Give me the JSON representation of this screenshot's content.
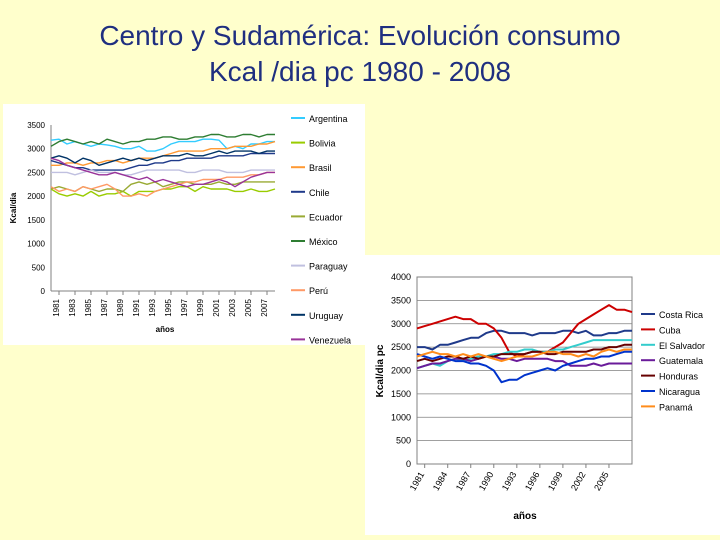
{
  "slide": {
    "title_line1": "Centro y Sudamérica: Evolución consumo",
    "title_line2": "Kcal /dia pc 1980 - 2008"
  },
  "chart_data": [
    {
      "type": "line",
      "title": "",
      "xlabel": "años",
      "ylabel": "Kcal/dia",
      "ylim": [
        0,
        3500
      ],
      "yticks": [
        0,
        500,
        1000,
        1500,
        2000,
        2500,
        3000,
        3500
      ],
      "x": [
        1980,
        1981,
        1982,
        1983,
        1984,
        1985,
        1986,
        1987,
        1988,
        1989,
        1990,
        1991,
        1992,
        1993,
        1994,
        1995,
        1996,
        1997,
        1998,
        1999,
        2000,
        2001,
        2002,
        2003,
        2004,
        2005,
        2006,
        2007,
        2008
      ],
      "xtick_labels": [
        "1981",
        "1983",
        "1985",
        "1987",
        "1989",
        "1991",
        "1993",
        "1995",
        "1997",
        "1999",
        "2001",
        "2003",
        "2005",
        "2007"
      ],
      "legend": "right",
      "series": [
        {
          "name": "Argentina",
          "color": "#33ccff",
          "values": [
            3180,
            3200,
            3100,
            3150,
            3100,
            3050,
            3100,
            3080,
            3050,
            3000,
            3000,
            3050,
            2950,
            2950,
            3000,
            3100,
            3150,
            3150,
            3150,
            3200,
            3200,
            3180,
            3000,
            3050,
            3000,
            3100,
            3100,
            3150,
            3150
          ]
        },
        {
          "name": "Bolivia",
          "color": "#99cc00",
          "values": [
            2150,
            2050,
            2000,
            2050,
            2000,
            2100,
            2000,
            2050,
            2050,
            2100,
            2000,
            2100,
            2100,
            2100,
            2150,
            2150,
            2200,
            2200,
            2100,
            2200,
            2150,
            2150,
            2150,
            2100,
            2100,
            2150,
            2100,
            2100,
            2150
          ]
        },
        {
          "name": "Brasil",
          "color": "#ff9933",
          "values": [
            2650,
            2650,
            2700,
            2700,
            2650,
            2700,
            2700,
            2750,
            2750,
            2700,
            2750,
            2800,
            2800,
            2800,
            2850,
            2900,
            2950,
            2950,
            2950,
            2950,
            3000,
            3000,
            3000,
            3050,
            3050,
            3050,
            3100,
            3100,
            3150
          ]
        },
        {
          "name": "Chile",
          "color": "#1f3a8a",
          "values": [
            2750,
            2700,
            2650,
            2600,
            2600,
            2550,
            2550,
            2550,
            2550,
            2550,
            2600,
            2650,
            2650,
            2700,
            2700,
            2750,
            2750,
            2800,
            2800,
            2800,
            2800,
            2850,
            2850,
            2850,
            2850,
            2900,
            2900,
            2900,
            2900
          ]
        },
        {
          "name": "Ecuador",
          "color": "#99aa33",
          "values": [
            2150,
            2200,
            2150,
            2100,
            2200,
            2150,
            2100,
            2150,
            2150,
            2100,
            2250,
            2300,
            2250,
            2300,
            2200,
            2250,
            2300,
            2300,
            2250,
            2250,
            2250,
            2300,
            2250,
            2250,
            2300,
            2300,
            2300,
            2300,
            2300
          ]
        },
        {
          "name": "México",
          "color": "#2e7d32",
          "values": [
            3050,
            3150,
            3200,
            3150,
            3100,
            3150,
            3100,
            3200,
            3150,
            3100,
            3150,
            3150,
            3200,
            3200,
            3250,
            3250,
            3200,
            3200,
            3250,
            3250,
            3300,
            3300,
            3250,
            3250,
            3300,
            3300,
            3250,
            3300,
            3300
          ]
        },
        {
          "name": "Paraguay",
          "color": "#c0c0e0",
          "values": [
            2500,
            2500,
            2500,
            2450,
            2500,
            2550,
            2500,
            2500,
            2500,
            2450,
            2450,
            2500,
            2550,
            2550,
            2550,
            2550,
            2550,
            2500,
            2500,
            2550,
            2550,
            2550,
            2500,
            2500,
            2500,
            2550,
            2550,
            2550,
            2550
          ]
        },
        {
          "name": "Perú",
          "color": "#ff9966",
          "values": [
            2200,
            2100,
            2150,
            2100,
            2200,
            2150,
            2200,
            2250,
            2150,
            2000,
            2000,
            2050,
            2000,
            2100,
            2150,
            2200,
            2250,
            2300,
            2300,
            2350,
            2350,
            2350,
            2400,
            2400,
            2400,
            2450,
            2450,
            2500,
            2500
          ]
        },
        {
          "name": "Uruguay",
          "color": "#003366",
          "values": [
            2800,
            2850,
            2800,
            2700,
            2800,
            2750,
            2650,
            2700,
            2750,
            2800,
            2750,
            2800,
            2750,
            2800,
            2850,
            2850,
            2850,
            2900,
            2850,
            2850,
            2900,
            2950,
            2900,
            2950,
            2950,
            2950,
            2900,
            2950,
            2950
          ]
        },
        {
          "name": "Venezuela",
          "color": "#993399",
          "values": [
            2800,
            2750,
            2650,
            2600,
            2550,
            2500,
            2450,
            2450,
            2500,
            2450,
            2400,
            2350,
            2400,
            2300,
            2350,
            2300,
            2250,
            2200,
            2250,
            2250,
            2300,
            2350,
            2300,
            2200,
            2300,
            2400,
            2450,
            2500,
            2500
          ]
        }
      ]
    },
    {
      "type": "line",
      "title": "",
      "xlabel": "años",
      "ylabel": "Kcal/dia pc",
      "ylim": [
        0,
        4000
      ],
      "yticks": [
        0,
        500,
        1000,
        1500,
        2000,
        2500,
        3000,
        3500,
        4000
      ],
      "x": [
        1980,
        1981,
        1982,
        1983,
        1984,
        1985,
        1986,
        1987,
        1988,
        1989,
        1990,
        1991,
        1992,
        1993,
        1994,
        1995,
        1996,
        1997,
        1998,
        1999,
        2000,
        2001,
        2002,
        2003,
        2004,
        2005,
        2006,
        2007,
        2008
      ],
      "xtick_labels": [
        "1981",
        "1984",
        "1987",
        "1990",
        "1993",
        "1996",
        "1999",
        "2002",
        "2005"
      ],
      "legend": "right",
      "series": [
        {
          "name": "Costa Rica",
          "color": "#1f3a8a",
          "values": [
            2500,
            2500,
            2450,
            2550,
            2550,
            2600,
            2650,
            2700,
            2700,
            2800,
            2850,
            2850,
            2800,
            2800,
            2800,
            2750,
            2800,
            2800,
            2800,
            2850,
            2850,
            2800,
            2850,
            2750,
            2750,
            2800,
            2800,
            2850,
            2850
          ]
        },
        {
          "name": "Cuba",
          "color": "#cc0000",
          "values": [
            2900,
            2950,
            3000,
            3050,
            3100,
            3150,
            3100,
            3100,
            3000,
            3000,
            2900,
            2700,
            2400,
            2300,
            2350,
            2400,
            2400,
            2400,
            2500,
            2600,
            2800,
            3000,
            3100,
            3200,
            3300,
            3400,
            3300,
            3300,
            3250
          ]
        },
        {
          "name": "El Salvador",
          "color": "#33cccc",
          "values": [
            2050,
            2100,
            2150,
            2100,
            2200,
            2250,
            2200,
            2250,
            2300,
            2300,
            2350,
            2350,
            2400,
            2400,
            2450,
            2450,
            2400,
            2400,
            2450,
            2450,
            2500,
            2550,
            2600,
            2650,
            2650,
            2650,
            2650,
            2650,
            2650
          ]
        },
        {
          "name": "Guatemala",
          "color": "#6a1b9a",
          "values": [
            2050,
            2100,
            2150,
            2150,
            2200,
            2250,
            2250,
            2200,
            2250,
            2300,
            2300,
            2250,
            2250,
            2200,
            2250,
            2250,
            2250,
            2250,
            2200,
            2200,
            2100,
            2100,
            2100,
            2150,
            2100,
            2150,
            2150,
            2150,
            2150
          ]
        },
        {
          "name": "Honduras",
          "color": "#660000",
          "values": [
            2200,
            2250,
            2200,
            2250,
            2300,
            2300,
            2250,
            2300,
            2250,
            2300,
            2300,
            2350,
            2350,
            2350,
            2350,
            2400,
            2400,
            2350,
            2350,
            2400,
            2400,
            2400,
            2400,
            2450,
            2450,
            2500,
            2500,
            2550,
            2550
          ]
        },
        {
          "name": "Nicaragua",
          "color": "#0033cc",
          "values": [
            2350,
            2300,
            2250,
            2300,
            2250,
            2200,
            2200,
            2150,
            2150,
            2100,
            2000,
            1750,
            1800,
            1800,
            1900,
            1950,
            2000,
            2050,
            2000,
            2100,
            2150,
            2200,
            2250,
            2250,
            2300,
            2300,
            2350,
            2400,
            2400
          ]
        },
        {
          "name": "Panamá",
          "color": "#ff8c1a",
          "values": [
            2300,
            2350,
            2400,
            2350,
            2350,
            2300,
            2350,
            2300,
            2350,
            2300,
            2250,
            2200,
            2250,
            2300,
            2300,
            2300,
            2350,
            2400,
            2400,
            2350,
            2350,
            2300,
            2350,
            2300,
            2400,
            2450,
            2400,
            2450,
            2450
          ]
        }
      ]
    }
  ]
}
